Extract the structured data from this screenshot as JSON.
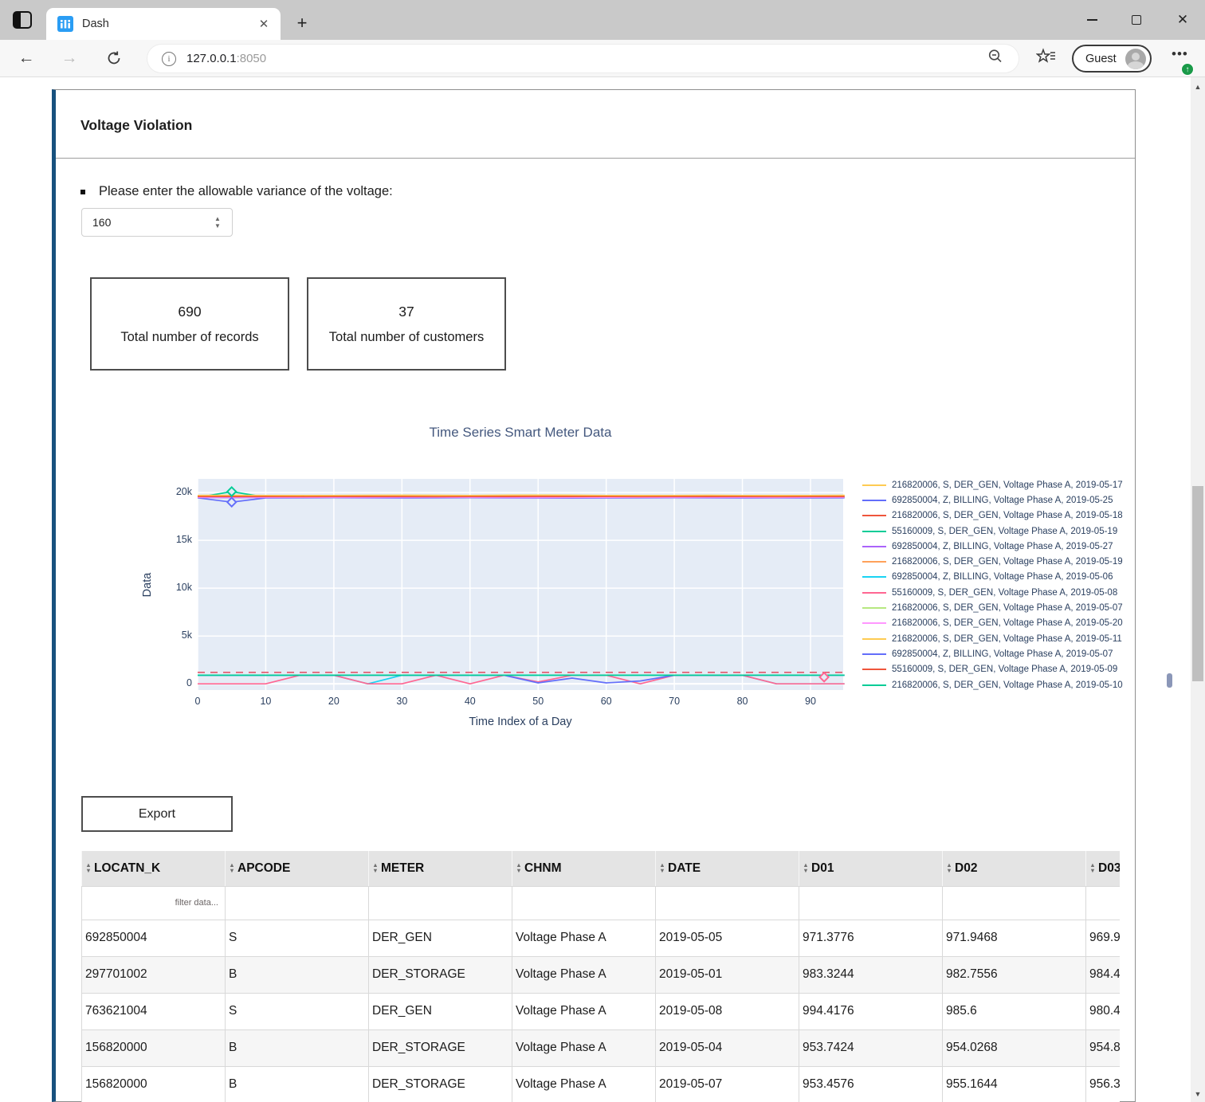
{
  "browser": {
    "tab_title": "Dash",
    "url_host": "127.0.0.1",
    "url_port": ":8050",
    "profile_label": "Guest",
    "icons": [
      "tab-actions-icon",
      "dash-favicon",
      "tab-close-icon",
      "new-tab-icon",
      "minimize-icon",
      "maximize-icon",
      "close-icon",
      "back-icon",
      "forward-icon",
      "refresh-icon",
      "info-icon",
      "zoom-out-icon",
      "favorites-icon",
      "avatar",
      "more-menu-icon",
      "update-badge-icon"
    ]
  },
  "card": {
    "title": "Voltage Violation",
    "prompt": "Please enter the allowable variance of the voltage:",
    "variance_value": "160",
    "stats": [
      {
        "value": "690",
        "label": "Total number of records"
      },
      {
        "value": "37",
        "label": "Total number of customers"
      }
    ],
    "export_label": "Export",
    "accent_color": "#17517e"
  },
  "chart_data": {
    "type": "line",
    "title": "Time Series Smart Meter Data",
    "xlabel": "Time Index of a Day",
    "ylabel": "Data",
    "x_ticks": [
      0,
      10,
      20,
      30,
      40,
      50,
      60,
      70,
      80,
      90
    ],
    "y_ticks": [
      "0",
      "5k",
      "10k",
      "15k",
      "20k"
    ],
    "y_tick_values": [
      0,
      5000,
      10000,
      15000,
      20000
    ],
    "xlim": [
      0,
      94.8
    ],
    "ylim": [
      -650,
      21430
    ],
    "grid": true,
    "plot_bg": "#e5ecf6",
    "grid_color": "#ffffff",
    "legend_position": "right",
    "x_values": [
      0,
      5,
      10,
      15,
      20,
      25,
      30,
      35,
      40,
      45,
      50,
      55,
      60,
      65,
      70,
      75,
      80,
      85,
      90,
      95
    ],
    "threshold_line": {
      "y": 1200,
      "color": "#e4576b",
      "dash": true
    },
    "markers": [
      {
        "x": 5,
        "y": 20100,
        "color": "#00cc96",
        "symbol": "diamond-open"
      },
      {
        "x": 5,
        "y": 19000,
        "color": "#636efa",
        "symbol": "diamond-open"
      },
      {
        "x": 92,
        "y": 700,
        "color": "#ff6692",
        "symbol": "diamond-open"
      }
    ],
    "series": [
      {
        "name": "216820006, S, DER_GEN, Voltage Phase A, 2019-05-17",
        "color": "#FECB52",
        "values": [
          19600,
          19640,
          19610,
          19580,
          19600,
          19630,
          19680,
          19650,
          19620,
          19700,
          19740,
          19700,
          19660,
          19620,
          19640,
          19660,
          19620,
          19600,
          19620,
          19640
        ]
      },
      {
        "name": "692850004, Z, BILLING, Voltage Phase A, 2019-05-25",
        "color": "#636EFA",
        "values": [
          19450,
          19000,
          19440,
          19450,
          19460,
          19450,
          19440,
          19450,
          19460,
          19450,
          19440,
          19430,
          19440,
          19450,
          19460,
          19450,
          19440,
          19450,
          19440,
          19450
        ]
      },
      {
        "name": "216820006, S, DER_GEN, Voltage Phase A, 2019-05-18",
        "color": "#EF553B",
        "values": [
          19550,
          19560,
          19540,
          19550,
          19560,
          19550,
          19540,
          19560,
          19570,
          19550,
          19530,
          19540,
          19560,
          19550,
          19540,
          19550,
          19560,
          19540,
          19550,
          19560
        ]
      },
      {
        "name": "55160009, S, DER_GEN, Voltage Phase A, 2019-05-19",
        "color": "#00CC96",
        "values": [
          19500,
          20100,
          19510,
          19500,
          19490,
          19500,
          19510,
          19500,
          19490,
          19510,
          19500,
          19490,
          19500,
          19510,
          19500,
          19490,
          19500,
          19510,
          19490,
          19500
        ]
      },
      {
        "name": "692850004, Z, BILLING, Voltage Phase A, 2019-05-27",
        "color": "#AB63FA",
        "values": [
          19480,
          19470,
          19480,
          19490,
          19480,
          19470,
          19480,
          19490,
          19480,
          19470,
          19460,
          19470,
          19480,
          19490,
          19480,
          19470,
          19480,
          19470,
          19480,
          19490
        ]
      },
      {
        "name": "216820006, S, DER_GEN, Voltage Phase A, 2019-05-19",
        "color": "#FFA15A",
        "values": [
          19650,
          19660,
          19640,
          19650,
          19660,
          19670,
          19650,
          19640,
          19660,
          19680,
          19700,
          19680,
          19650,
          19640,
          19650,
          19660,
          19650,
          19640,
          19650,
          19660
        ]
      },
      {
        "name": "692850004, Z, BILLING, Voltage Phase A, 2019-05-06",
        "color": "#19D3F3",
        "values": [
          900,
          900,
          900,
          900,
          900,
          0,
          900,
          900,
          900,
          900,
          900,
          900,
          900,
          900,
          900,
          900,
          900,
          0,
          0,
          0
        ]
      },
      {
        "name": "55160009, S, DER_GEN, Voltage Phase A, 2019-05-08",
        "color": "#FF6692",
        "values": [
          0,
          0,
          0,
          900,
          900,
          0,
          0,
          900,
          0,
          900,
          200,
          900,
          900,
          0,
          900,
          900,
          900,
          0,
          0,
          0
        ]
      },
      {
        "name": "216820006, S, DER_GEN, Voltage Phase A, 2019-05-07",
        "color": "#B6E880",
        "values": [
          19560,
          19570,
          19560,
          19550,
          19560,
          19570,
          19560,
          19550,
          19560,
          19570,
          19580,
          19570,
          19560,
          19550,
          19560,
          19570,
          19560,
          19550,
          19560,
          19570
        ]
      },
      {
        "name": "216820006, S, DER_GEN, Voltage Phase A, 2019-05-20",
        "color": "#FF97FF",
        "values": [
          19520,
          19530,
          19520,
          19510,
          19520,
          19530,
          19540,
          19530,
          19520,
          19530,
          19520,
          19510,
          19500,
          19510,
          19520,
          19530,
          19520,
          19510,
          19520,
          19530
        ]
      },
      {
        "name": "216820006, S, DER_GEN, Voltage Phase A, 2019-05-11",
        "color": "#FECB52",
        "values": [
          19700,
          19710,
          19700,
          19690,
          19700,
          19710,
          19720,
          19710,
          19700,
          19720,
          19740,
          19720,
          19700,
          19690,
          19700,
          19710,
          19700,
          19690,
          19700,
          19710
        ]
      },
      {
        "name": "692850004, Z, BILLING, Voltage Phase A, 2019-05-07",
        "color": "#636EFA",
        "values": [
          900,
          900,
          900,
          900,
          900,
          900,
          900,
          900,
          900,
          900,
          100,
          600,
          100,
          300,
          900,
          900,
          900,
          900,
          900,
          900
        ]
      },
      {
        "name": "55160009, S, DER_GEN, Voltage Phase A, 2019-05-09",
        "color": "#EF553B",
        "values": [
          19580,
          19590,
          19580,
          19570,
          19580,
          19590,
          19580,
          19570,
          19580,
          19590,
          19600,
          19590,
          19580,
          19570,
          19580,
          19590,
          19580,
          19570,
          19580,
          19590
        ]
      },
      {
        "name": "216820006, S, DER_GEN, Voltage Phase A, 2019-05-10",
        "color": "#00CC96",
        "values": [
          900,
          900,
          900,
          900,
          900,
          900,
          900,
          900,
          900,
          900,
          900,
          900,
          900,
          900,
          900,
          900,
          900,
          900,
          900,
          900
        ]
      }
    ]
  },
  "table": {
    "columns": [
      "LOCATN_K",
      "APCODE",
      "METER",
      "CHNM",
      "DATE",
      "D01",
      "D02",
      "D03"
    ],
    "filter_placeholder": "filter data...",
    "rows": [
      [
        "692850004",
        "S",
        "DER_GEN",
        "Voltage Phase A",
        "2019-05-05",
        "971.3776",
        "971.9468",
        "969.9"
      ],
      [
        "297701002",
        "B",
        "DER_STORAGE",
        "Voltage Phase A",
        "2019-05-01",
        "983.3244",
        "982.7556",
        "984.4"
      ],
      [
        "763621004",
        "S",
        "DER_GEN",
        "Voltage Phase A",
        "2019-05-08",
        "994.4176",
        "985.6",
        "980.4"
      ],
      [
        "156820000",
        "B",
        "DER_STORAGE",
        "Voltage Phase A",
        "2019-05-04",
        "953.7424",
        "954.0268",
        "954.8"
      ],
      [
        "156820000",
        "B",
        "DER_STORAGE",
        "Voltage Phase A",
        "2019-05-07",
        "953.4576",
        "955.1644",
        "956.3"
      ]
    ]
  }
}
